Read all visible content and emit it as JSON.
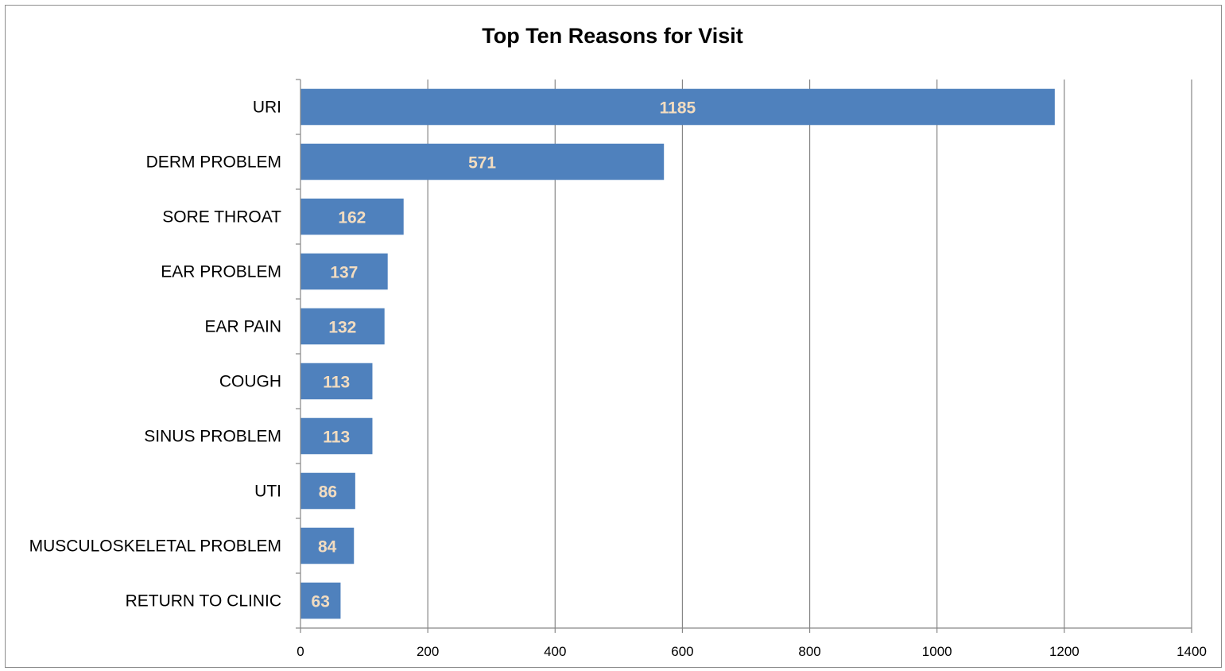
{
  "chart_data": {
    "type": "bar",
    "orientation": "horizontal",
    "title": "Top Ten Reasons for Visit",
    "xlabel": "",
    "ylabel": "",
    "categories": [
      "URI",
      "DERM PROBLEM",
      "SORE THROAT",
      "EAR PROBLEM",
      "EAR PAIN",
      "COUGH",
      "SINUS PROBLEM",
      "UTI",
      "MUSCULOSKELETAL PROBLEM",
      "RETURN TO CLINIC"
    ],
    "values": [
      1185,
      571,
      162,
      137,
      132,
      113,
      113,
      86,
      84,
      63
    ],
    "xlim": [
      0,
      1400
    ],
    "xticks": [
      0,
      200,
      400,
      600,
      800,
      1000,
      1200,
      1400
    ],
    "grid": "vertical",
    "legend": "none",
    "colors": {
      "bar": "#4f81bd",
      "data_label": "#f2dcc0",
      "grid": "#868686"
    }
  }
}
